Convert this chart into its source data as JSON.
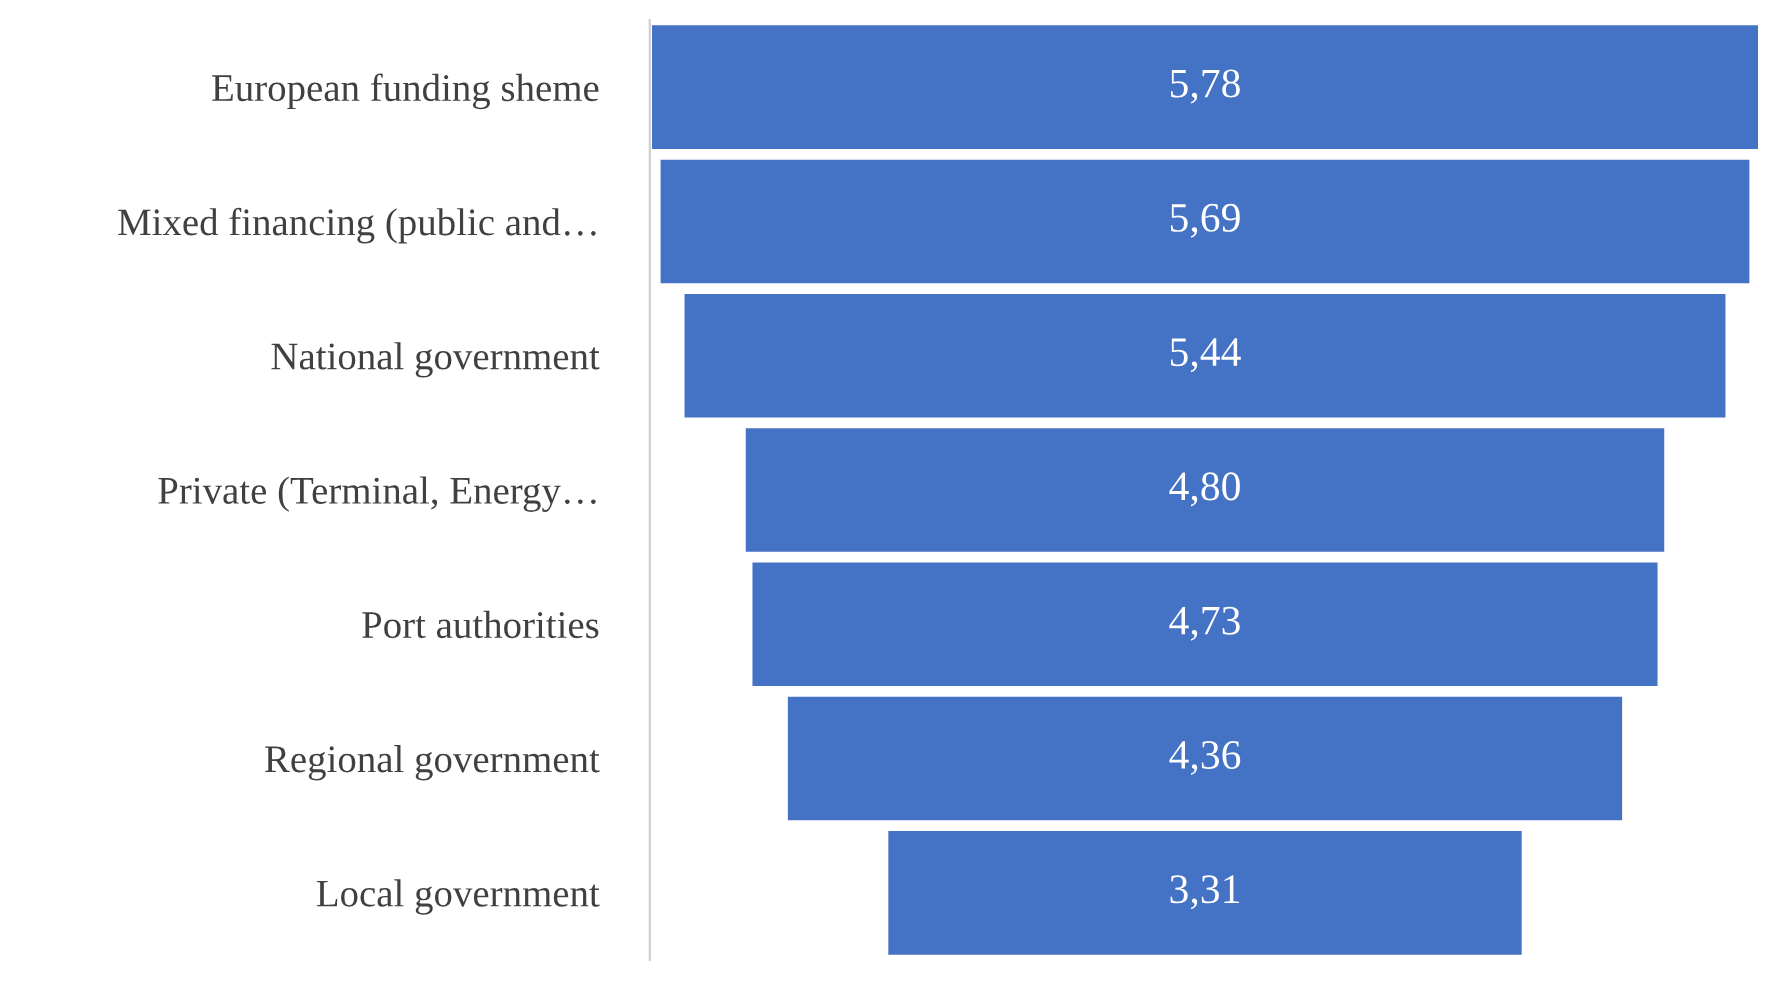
{
  "chart_data": {
    "type": "other",
    "categories": [
      "European funding sheme",
      "Mixed financing (public and…",
      "National government",
      "Private (Terminal, Energy…",
      "Port authorities",
      "Regional government",
      "Local government"
    ],
    "values": [
      5.78,
      5.69,
      5.44,
      4.8,
      4.73,
      4.36,
      3.31
    ],
    "value_labels": [
      "5,78",
      "5,69",
      "5,44",
      "4,80",
      "4,73",
      "4,36",
      "3,31"
    ],
    "color": "#4472c4"
  }
}
